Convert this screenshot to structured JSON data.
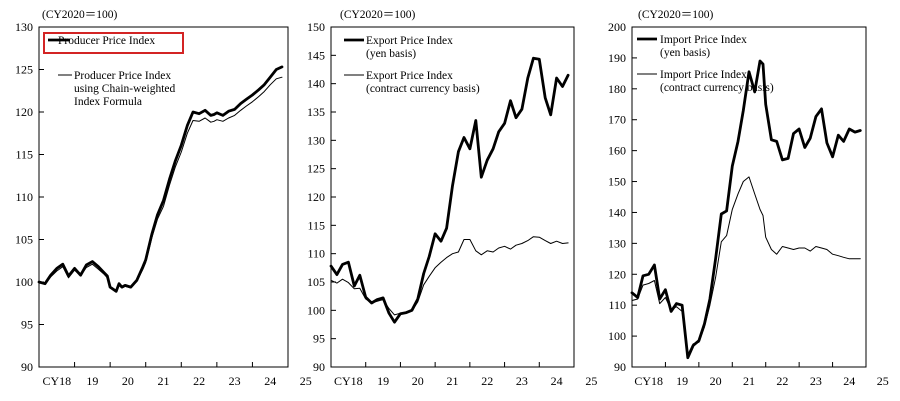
{
  "chart_data": [
    {
      "type": "line",
      "unit_label": "(CY2020＝100)",
      "ylim": [
        90,
        130
      ],
      "y_ticks": [
        90,
        95,
        100,
        105,
        110,
        115,
        120,
        125,
        130
      ],
      "x_range": [
        2018,
        2025
      ],
      "x_tick_labels": [
        {
          "x": 2018,
          "label": "CY18"
        },
        {
          "x": 2019,
          "label": "19"
        },
        {
          "x": 2020,
          "label": "20"
        },
        {
          "x": 2021,
          "label": "21"
        },
        {
          "x": 2022,
          "label": "22"
        },
        {
          "x": 2023,
          "label": "23"
        },
        {
          "x": 2024,
          "label": "24"
        },
        {
          "x": 2025,
          "label": "25"
        }
      ],
      "series": [
        {
          "name": "Producer Price Index",
          "legend_lines": [
            "Producer Price Index"
          ],
          "style": "thick",
          "highlighted": true,
          "x": [
            2018.0,
            2018.17,
            2018.33,
            2018.5,
            2018.67,
            2018.83,
            2019.0,
            2019.17,
            2019.33,
            2019.5,
            2019.67,
            2019.83,
            2019.92,
            2020.0,
            2020.17,
            2020.25,
            2020.33,
            2020.42,
            2020.58,
            2020.75,
            2020.92,
            2021.0,
            2021.17,
            2021.33,
            2021.5,
            2021.67,
            2021.83,
            2022.0,
            2022.17,
            2022.33,
            2022.5,
            2022.67,
            2022.83,
            2022.92,
            2023.0,
            2023.17,
            2023.33,
            2023.5,
            2023.67,
            2023.83,
            2024.0,
            2024.17,
            2024.33,
            2024.5,
            2024.67,
            2024.83
          ],
          "values": [
            100.0,
            99.8,
            100.8,
            101.6,
            102.1,
            100.7,
            101.6,
            100.8,
            102.0,
            102.4,
            101.8,
            101.1,
            100.7,
            99.4,
            98.9,
            99.8,
            99.4,
            99.6,
            99.4,
            100.2,
            101.8,
            102.6,
            105.6,
            107.9,
            109.6,
            112.1,
            114.2,
            116.1,
            118.4,
            120.0,
            119.8,
            120.2,
            119.6,
            119.7,
            119.9,
            119.6,
            120.1,
            120.3,
            121.0,
            121.5,
            122.0,
            122.6,
            123.2,
            124.1,
            125.0,
            125.3
          ]
        },
        {
          "name": "Producer Price Index using Chain-weighted Index Formula",
          "legend_lines": [
            "Producer Price Index",
            "using Chain-weighted",
            "Index Formula"
          ],
          "style": "thin",
          "highlighted": false,
          "x": [
            2018.0,
            2018.17,
            2018.33,
            2018.5,
            2018.67,
            2018.83,
            2019.0,
            2019.17,
            2019.33,
            2019.5,
            2019.67,
            2019.83,
            2019.92,
            2020.0,
            2020.17,
            2020.25,
            2020.33,
            2020.42,
            2020.58,
            2020.75,
            2020.92,
            2021.0,
            2021.17,
            2021.33,
            2021.5,
            2021.67,
            2021.83,
            2022.0,
            2022.17,
            2022.33,
            2022.5,
            2022.67,
            2022.83,
            2022.92,
            2023.0,
            2023.17,
            2023.33,
            2023.5,
            2023.67,
            2023.83,
            2024.0,
            2024.17,
            2024.33,
            2024.5,
            2024.67,
            2024.83
          ],
          "values": [
            100.0,
            99.8,
            100.6,
            101.3,
            101.8,
            100.5,
            101.4,
            100.7,
            101.7,
            102.1,
            101.5,
            100.9,
            100.5,
            99.3,
            98.9,
            99.6,
            99.3,
            99.5,
            99.3,
            100.1,
            101.5,
            102.3,
            105.2,
            107.4,
            108.9,
            111.4,
            113.5,
            115.3,
            117.5,
            119.0,
            118.9,
            119.3,
            118.8,
            118.9,
            119.1,
            118.9,
            119.3,
            119.6,
            120.2,
            120.7,
            121.2,
            121.8,
            122.4,
            123.2,
            123.9,
            124.1
          ]
        }
      ]
    },
    {
      "type": "line",
      "unit_label": "(CY2020＝100)",
      "ylim": [
        90,
        150
      ],
      "y_ticks": [
        90,
        95,
        100,
        105,
        110,
        115,
        120,
        125,
        130,
        135,
        140,
        145,
        150
      ],
      "x_range": [
        2018,
        2025
      ],
      "x_tick_labels": [
        {
          "x": 2018,
          "label": "CY18"
        },
        {
          "x": 2019,
          "label": "19"
        },
        {
          "x": 2020,
          "label": "20"
        },
        {
          "x": 2021,
          "label": "21"
        },
        {
          "x": 2022,
          "label": "22"
        },
        {
          "x": 2023,
          "label": "23"
        },
        {
          "x": 2024,
          "label": "24"
        },
        {
          "x": 2025,
          "label": "25"
        }
      ],
      "series": [
        {
          "name": "Export Price Index (yen basis)",
          "legend_lines": [
            "Export Price Index",
            "(yen basis)"
          ],
          "style": "thick",
          "x": [
            2018.0,
            2018.17,
            2018.33,
            2018.5,
            2018.67,
            2018.83,
            2019.0,
            2019.17,
            2019.33,
            2019.5,
            2019.67,
            2019.83,
            2020.0,
            2020.17,
            2020.33,
            2020.5,
            2020.67,
            2020.83,
            2021.0,
            2021.17,
            2021.33,
            2021.5,
            2021.67,
            2021.83,
            2022.0,
            2022.17,
            2022.33,
            2022.5,
            2022.67,
            2022.83,
            2023.0,
            2023.17,
            2023.33,
            2023.5,
            2023.67,
            2023.83,
            2024.0,
            2024.17,
            2024.33,
            2024.5,
            2024.67,
            2024.83
          ],
          "values": [
            107.8,
            106.3,
            108.1,
            108.5,
            104.3,
            106.2,
            102.3,
            101.3,
            101.9,
            102.2,
            99.5,
            97.9,
            99.4,
            99.6,
            100.0,
            102.0,
            106.5,
            109.5,
            113.5,
            112.2,
            114.5,
            122.0,
            128.0,
            130.5,
            128.5,
            133.5,
            123.5,
            126.5,
            128.5,
            131.5,
            133.0,
            137.0,
            134.0,
            135.5,
            141.0,
            144.5,
            144.3,
            137.5,
            134.5,
            141.0,
            139.5,
            141.5
          ]
        },
        {
          "name": "Export Price Index (contract currency basis)",
          "legend_lines": [
            "Export Price Index",
            "(contract currency basis)"
          ],
          "style": "thin",
          "x": [
            2018.0,
            2018.17,
            2018.33,
            2018.5,
            2018.67,
            2018.83,
            2019.0,
            2019.17,
            2019.33,
            2019.5,
            2019.67,
            2019.83,
            2020.0,
            2020.17,
            2020.33,
            2020.5,
            2020.67,
            2020.83,
            2021.0,
            2021.17,
            2021.33,
            2021.5,
            2021.67,
            2021.83,
            2022.0,
            2022.17,
            2022.33,
            2022.5,
            2022.67,
            2022.83,
            2023.0,
            2023.17,
            2023.33,
            2023.5,
            2023.67,
            2023.83,
            2024.0,
            2024.17,
            2024.33,
            2024.5,
            2024.67,
            2024.83
          ],
          "values": [
            105.3,
            104.8,
            105.5,
            104.9,
            103.8,
            103.9,
            102.0,
            101.3,
            101.6,
            101.9,
            100.3,
            99.2,
            99.5,
            99.6,
            99.9,
            101.5,
            104.5,
            106.0,
            107.5,
            108.5,
            109.3,
            110.0,
            110.3,
            112.5,
            112.5,
            110.5,
            109.8,
            110.5,
            110.3,
            111.0,
            111.3,
            110.8,
            111.5,
            111.8,
            112.3,
            113.0,
            112.9,
            112.3,
            111.8,
            112.2,
            111.8,
            111.9
          ]
        }
      ]
    },
    {
      "type": "line",
      "unit_label": "(CY2020＝100)",
      "ylim": [
        90,
        200
      ],
      "y_ticks": [
        90,
        100,
        110,
        120,
        130,
        140,
        150,
        160,
        170,
        180,
        190,
        200
      ],
      "x_range": [
        2018,
        2025
      ],
      "x_tick_labels": [
        {
          "x": 2018,
          "label": "CY18"
        },
        {
          "x": 2019,
          "label": "19"
        },
        {
          "x": 2020,
          "label": "20"
        },
        {
          "x": 2021,
          "label": "21"
        },
        {
          "x": 2022,
          "label": "22"
        },
        {
          "x": 2023,
          "label": "23"
        },
        {
          "x": 2024,
          "label": "24"
        },
        {
          "x": 2025,
          "label": "25"
        }
      ],
      "series": [
        {
          "name": "Import Price Index (yen basis)",
          "legend_lines": [
            "Import Price Index",
            "(yen basis)"
          ],
          "style": "thick",
          "x": [
            2018.0,
            2018.17,
            2018.33,
            2018.5,
            2018.67,
            2018.83,
            2019.0,
            2019.17,
            2019.33,
            2019.5,
            2019.67,
            2019.83,
            2020.0,
            2020.17,
            2020.33,
            2020.5,
            2020.67,
            2020.83,
            2021.0,
            2021.17,
            2021.33,
            2021.5,
            2021.67,
            2021.83,
            2021.92,
            2022.0,
            2022.17,
            2022.33,
            2022.5,
            2022.67,
            2022.83,
            2023.0,
            2023.17,
            2023.33,
            2023.5,
            2023.67,
            2023.83,
            2024.0,
            2024.17,
            2024.33,
            2024.5,
            2024.67,
            2024.83
          ],
          "values": [
            114.0,
            112.5,
            119.5,
            120.0,
            123.0,
            112.0,
            115.0,
            108.0,
            110.5,
            110.0,
            93.0,
            97.0,
            98.5,
            104.0,
            112.0,
            125.0,
            139.5,
            140.5,
            155.0,
            163.0,
            173.0,
            185.5,
            179.0,
            189.0,
            188.0,
            175.0,
            163.5,
            163.0,
            157.0,
            157.5,
            165.5,
            167.0,
            161.0,
            164.0,
            171.0,
            173.5,
            162.5,
            158.0,
            165.0,
            163.0,
            167.0,
            166.0,
            166.5
          ]
        },
        {
          "name": "Import Price Index (contract currency basis)",
          "legend_lines": [
            "Import Price Index",
            "(contract currency basis)"
          ],
          "style": "thin",
          "x": [
            2018.0,
            2018.17,
            2018.33,
            2018.5,
            2018.67,
            2018.83,
            2019.0,
            2019.17,
            2019.33,
            2019.5,
            2019.67,
            2019.83,
            2020.0,
            2020.17,
            2020.33,
            2020.5,
            2020.67,
            2020.83,
            2021.0,
            2021.17,
            2021.33,
            2021.5,
            2021.67,
            2021.83,
            2021.92,
            2022.0,
            2022.17,
            2022.33,
            2022.5,
            2022.67,
            2022.83,
            2023.0,
            2023.17,
            2023.33,
            2023.5,
            2023.67,
            2023.83,
            2024.0,
            2024.17,
            2024.33,
            2024.5,
            2024.67,
            2024.83
          ],
          "values": [
            111.5,
            112.0,
            116.5,
            117.0,
            118.0,
            110.5,
            112.5,
            108.5,
            109.5,
            108.0,
            94.0,
            97.5,
            98.0,
            103.0,
            110.0,
            119.0,
            130.5,
            132.5,
            141.0,
            146.0,
            150.0,
            151.5,
            146.0,
            141.0,
            139.0,
            132.0,
            128.0,
            126.5,
            129.0,
            128.5,
            128.0,
            128.5,
            128.5,
            127.5,
            129.0,
            128.5,
            128.0,
            126.5,
            126.0,
            125.5,
            125.0,
            125.0,
            125.0
          ]
        }
      ]
    }
  ]
}
